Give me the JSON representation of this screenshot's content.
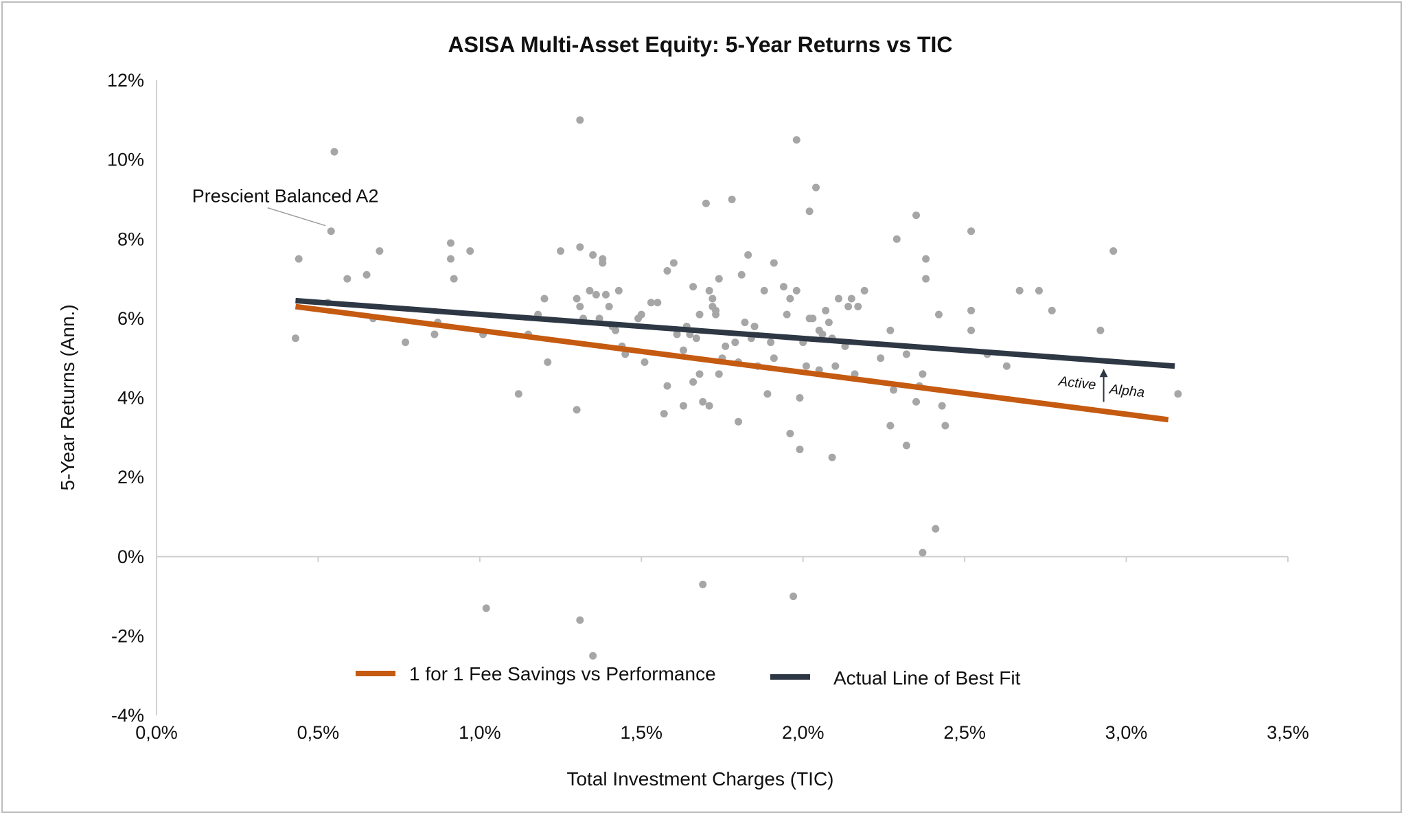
{
  "chart_data": {
    "type": "scatter",
    "title": "ASISA Multi-Asset Equity: 5-Year Returns vs TIC",
    "xlabel": "Total Investment Charges (TIC)",
    "ylabel": "5-Year Returns (Ann.)",
    "xlim": [
      0.0,
      3.5
    ],
    "ylim": [
      -4,
      12
    ],
    "x_ticks": [
      0.0,
      0.5,
      1.0,
      1.5,
      2.0,
      2.5,
      3.0,
      3.5
    ],
    "x_tick_labels": [
      "0,0%",
      "0,5%",
      "1,0%",
      "1,5%",
      "2,0%",
      "2,5%",
      "3,0%",
      "3,5%"
    ],
    "y_ticks": [
      -4,
      -2,
      0,
      2,
      4,
      6,
      8,
      10,
      12
    ],
    "y_tick_labels": [
      "-4%",
      "-2%",
      "0%",
      "2%",
      "4%",
      "6%",
      "8%",
      "10%",
      "12%"
    ],
    "grid": false,
    "legend_position": "bottom-center",
    "colors": {
      "points": "#a6a6a6",
      "fee_line": "#c55a11",
      "fit_line": "#2e3744"
    },
    "series": [
      {
        "name": "",
        "kind": "scatter",
        "points": [
          [
            0.44,
            7.5
          ],
          [
            0.43,
            5.5
          ],
          [
            0.53,
            6.4
          ],
          [
            0.55,
            10.2
          ],
          [
            0.54,
            8.2
          ],
          [
            0.59,
            7.0
          ],
          [
            0.65,
            7.1
          ],
          [
            0.69,
            7.7
          ],
          [
            0.67,
            6.0
          ],
          [
            0.77,
            5.4
          ],
          [
            0.86,
            5.6
          ],
          [
            0.87,
            5.9
          ],
          [
            0.91,
            7.9
          ],
          [
            0.91,
            7.5
          ],
          [
            0.92,
            7.0
          ],
          [
            0.97,
            7.7
          ],
          [
            1.01,
            5.6
          ],
          [
            1.02,
            -1.3
          ],
          [
            1.12,
            4.1
          ],
          [
            1.15,
            5.6
          ],
          [
            1.18,
            6.1
          ],
          [
            1.2,
            6.5
          ],
          [
            1.21,
            4.9
          ],
          [
            1.25,
            7.7
          ],
          [
            1.3,
            3.7
          ],
          [
            1.31,
            7.8
          ],
          [
            1.31,
            11.0
          ],
          [
            1.3,
            6.5
          ],
          [
            1.32,
            6.0
          ],
          [
            1.31,
            6.3
          ],
          [
            1.34,
            6.7
          ],
          [
            1.35,
            7.6
          ],
          [
            1.36,
            6.6
          ],
          [
            1.35,
            -2.5
          ],
          [
            1.38,
            7.5
          ],
          [
            1.38,
            7.4
          ],
          [
            1.37,
            6.0
          ],
          [
            1.39,
            6.6
          ],
          [
            1.4,
            6.3
          ],
          [
            1.41,
            5.8
          ],
          [
            1.42,
            5.7
          ],
          [
            1.43,
            6.7
          ],
          [
            1.45,
            5.1
          ],
          [
            1.44,
            5.3
          ],
          [
            1.49,
            6.0
          ],
          [
            1.5,
            6.1
          ],
          [
            1.51,
            4.9
          ],
          [
            1.31,
            -1.6
          ],
          [
            1.53,
            6.4
          ],
          [
            1.55,
            6.4
          ],
          [
            1.57,
            3.6
          ],
          [
            1.58,
            7.2
          ],
          [
            1.58,
            4.3
          ],
          [
            1.6,
            7.4
          ],
          [
            1.61,
            5.6
          ],
          [
            1.63,
            5.2
          ],
          [
            1.63,
            3.8
          ],
          [
            1.64,
            5.8
          ],
          [
            1.65,
            5.6
          ],
          [
            1.66,
            6.8
          ],
          [
            1.66,
            4.4
          ],
          [
            1.67,
            5.5
          ],
          [
            1.68,
            6.1
          ],
          [
            1.68,
            4.6
          ],
          [
            1.69,
            3.9
          ],
          [
            1.69,
            -0.7
          ],
          [
            1.7,
            8.9
          ],
          [
            1.71,
            3.8
          ],
          [
            1.71,
            6.7
          ],
          [
            1.72,
            6.5
          ],
          [
            1.72,
            6.3
          ],
          [
            1.73,
            6.1
          ],
          [
            1.73,
            6.2
          ],
          [
            1.74,
            4.6
          ],
          [
            1.74,
            7.0
          ],
          [
            1.75,
            5.0
          ],
          [
            1.76,
            5.3
          ],
          [
            1.78,
            9.0
          ],
          [
            1.79,
            5.4
          ],
          [
            1.8,
            4.9
          ],
          [
            1.8,
            3.4
          ],
          [
            1.81,
            7.1
          ],
          [
            1.82,
            5.9
          ],
          [
            1.83,
            7.6
          ],
          [
            1.84,
            5.5
          ],
          [
            1.85,
            5.8
          ],
          [
            1.86,
            4.8
          ],
          [
            1.88,
            6.7
          ],
          [
            1.89,
            4.1
          ],
          [
            1.9,
            5.4
          ],
          [
            1.91,
            7.4
          ],
          [
            1.91,
            5.0
          ],
          [
            1.94,
            6.8
          ],
          [
            1.95,
            6.1
          ],
          [
            1.96,
            6.5
          ],
          [
            1.96,
            3.1
          ],
          [
            1.97,
            -1.0
          ],
          [
            1.98,
            10.5
          ],
          [
            1.98,
            6.7
          ],
          [
            1.99,
            4.0
          ],
          [
            1.99,
            2.7
          ],
          [
            2.0,
            5.4
          ],
          [
            2.01,
            4.8
          ],
          [
            2.02,
            8.7
          ],
          [
            2.02,
            6.0
          ],
          [
            2.03,
            6.0
          ],
          [
            2.04,
            9.3
          ],
          [
            2.05,
            4.7
          ],
          [
            2.05,
            5.7
          ],
          [
            2.06,
            5.6
          ],
          [
            2.07,
            6.2
          ],
          [
            2.08,
            5.9
          ],
          [
            2.09,
            5.5
          ],
          [
            2.09,
            2.5
          ],
          [
            2.1,
            4.8
          ],
          [
            2.11,
            6.5
          ],
          [
            2.13,
            5.3
          ],
          [
            2.14,
            6.3
          ],
          [
            2.15,
            6.5
          ],
          [
            2.16,
            4.6
          ],
          [
            2.17,
            6.3
          ],
          [
            2.19,
            6.7
          ],
          [
            2.24,
            5.0
          ],
          [
            2.27,
            3.3
          ],
          [
            2.27,
            5.7
          ],
          [
            2.28,
            4.2
          ],
          [
            2.29,
            8.0
          ],
          [
            2.32,
            5.1
          ],
          [
            2.32,
            2.8
          ],
          [
            2.35,
            8.6
          ],
          [
            2.35,
            3.9
          ],
          [
            2.36,
            4.3
          ],
          [
            2.37,
            4.6
          ],
          [
            2.37,
            0.1
          ],
          [
            2.38,
            7.5
          ],
          [
            2.38,
            7.0
          ],
          [
            2.41,
            0.7
          ],
          [
            2.42,
            6.1
          ],
          [
            2.43,
            3.8
          ],
          [
            2.44,
            3.3
          ],
          [
            2.52,
            8.2
          ],
          [
            2.52,
            6.2
          ],
          [
            2.52,
            5.7
          ],
          [
            2.57,
            5.1
          ],
          [
            2.63,
            4.8
          ],
          [
            2.67,
            6.7
          ],
          [
            2.73,
            6.7
          ],
          [
            2.77,
            6.2
          ],
          [
            2.92,
            5.7
          ],
          [
            2.96,
            7.7
          ],
          [
            3.16,
            4.1
          ]
        ]
      },
      {
        "name": "1 for 1 Fee Savings vs Performance",
        "kind": "line",
        "x": [
          0.43,
          3.13
        ],
        "y": [
          6.3,
          3.45
        ]
      },
      {
        "name": "Actual Line of Best Fit",
        "kind": "line",
        "x": [
          0.43,
          3.15
        ],
        "y": [
          6.45,
          4.8
        ]
      }
    ],
    "annotations": [
      {
        "id": "prescient",
        "text": "Prescient Balanced A2",
        "points_to": [
          0.54,
          8.2
        ],
        "label_at": [
          0.11,
          9.1
        ]
      },
      {
        "id": "active",
        "text": "Active",
        "arrow_x": 2.93,
        "arrow_from": 3.9,
        "arrow_to": 4.8
      },
      {
        "id": "alpha",
        "text": "Alpha"
      }
    ]
  }
}
